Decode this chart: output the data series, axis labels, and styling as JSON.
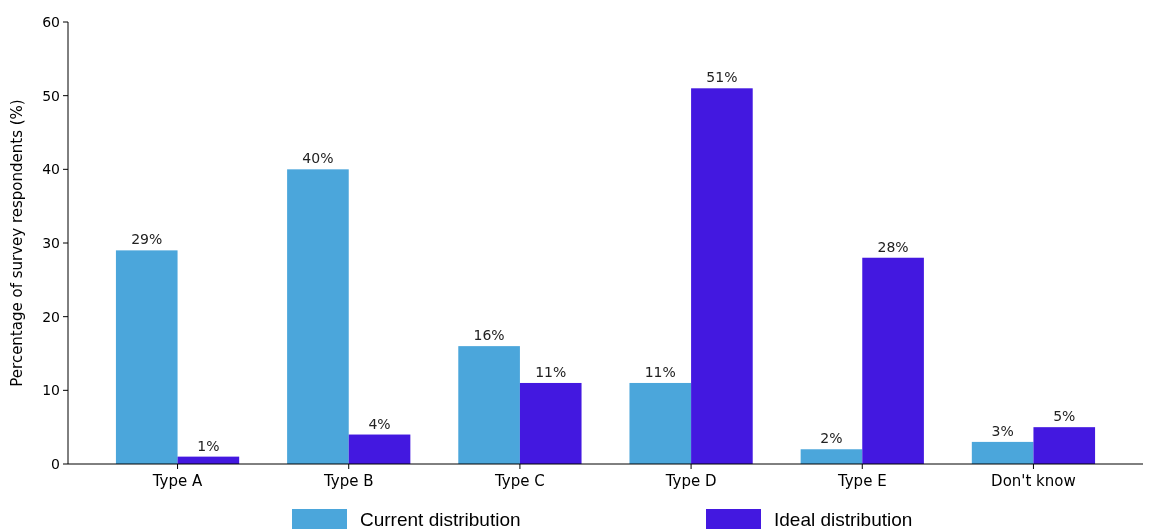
{
  "chart_data": {
    "type": "bar",
    "ylabel": "Percentage of survey respondents (%)",
    "categories": [
      "Type A",
      "Type B",
      "Type C",
      "Type D",
      "Type E",
      "Don't know"
    ],
    "series": [
      {
        "name": "Current distribution",
        "color": "#4ba6db",
        "values": [
          29,
          40,
          16,
          11,
          2,
          3
        ],
        "value_labels": [
          "29%",
          "40%",
          "16%",
          "11%",
          "2%",
          "3%"
        ]
      },
      {
        "name": "Ideal distribution",
        "color": "#4318e0",
        "values": [
          1,
          4,
          11,
          51,
          28,
          5
        ],
        "value_labels": [
          "1%",
          "4%",
          "11%",
          "51%",
          "28%",
          "5%"
        ]
      }
    ],
    "ylim": [
      0,
      60
    ],
    "yticks": [
      0,
      10,
      20,
      30,
      40,
      50,
      60
    ],
    "grid": false,
    "legend": "bottom"
  }
}
